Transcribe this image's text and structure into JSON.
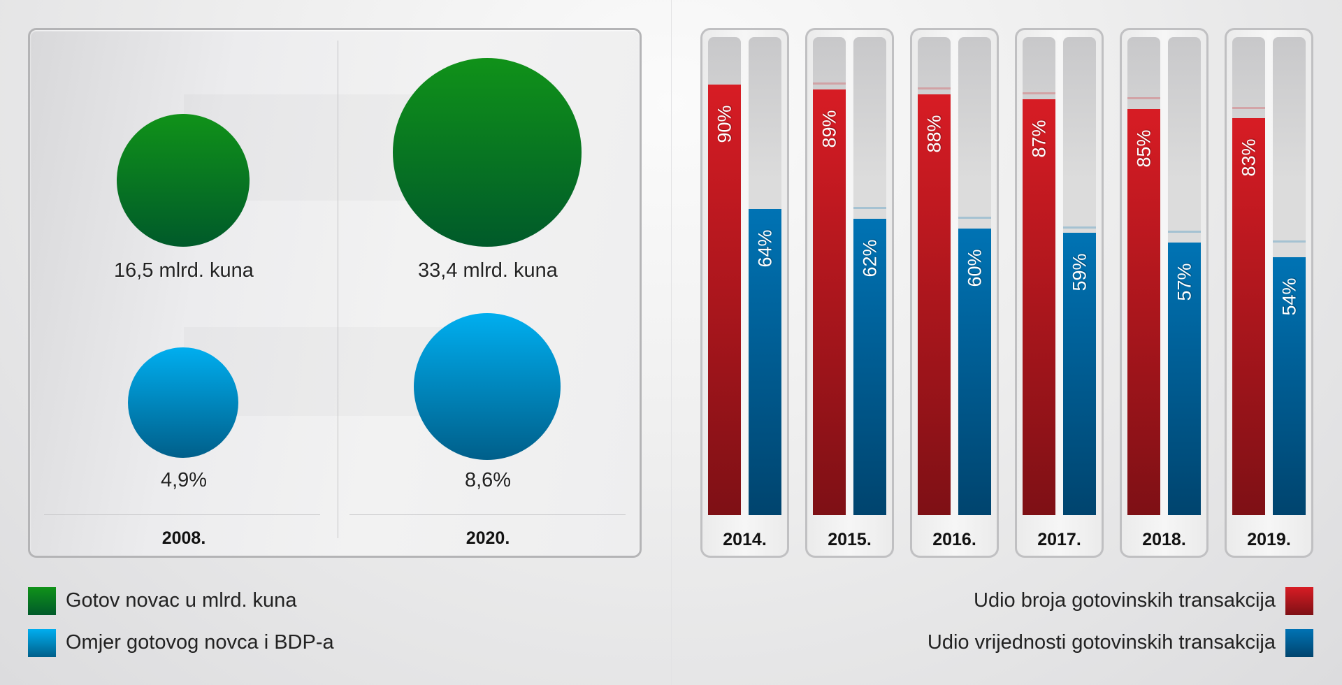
{
  "chart_data": [
    {
      "type": "bubble",
      "title": "",
      "categories": [
        "2008.",
        "2020."
      ],
      "series": [
        {
          "name": "Gotov novac u mlrd. kuna",
          "values": [
            16.5,
            33.4
          ],
          "labels": [
            "16,5 mlrd. kuna",
            "33,4 mlrd. kuna"
          ],
          "color": "#0f8f1a"
        },
        {
          "name": "Omjer gotovog novca i BDP-a",
          "values": [
            4.9,
            8.6
          ],
          "labels": [
            "4,9%",
            "8,6%"
          ],
          "color": "#00aeef"
        }
      ]
    },
    {
      "type": "bar",
      "title": "",
      "categories": [
        "2014.",
        "2015.",
        "2016.",
        "2017.",
        "2018.",
        "2019."
      ],
      "ylim": [
        0,
        100
      ],
      "series": [
        {
          "name": "Udio broja gotovinskih transakcija",
          "values": [
            90,
            89,
            88,
            87,
            85,
            83
          ],
          "color": "#d71c24"
        },
        {
          "name": "Udio vrijednosti gotovinskih transakcija",
          "values": [
            64,
            62,
            60,
            59,
            57,
            54
          ],
          "color": "#0073b4"
        }
      ]
    }
  ],
  "legend_left": [
    {
      "label": "Gotov novac u mlrd. kuna",
      "color": "#0f8f1a"
    },
    {
      "label": "Omjer gotovog novca i BDP-a",
      "color": "#00aeef"
    }
  ],
  "legend_right": [
    {
      "label": "Udio broja gotovinskih transakcija",
      "color": "#d71c24"
    },
    {
      "label": "Udio vrijednosti gotovinskih transakcija",
      "color": "#0073b4"
    }
  ]
}
